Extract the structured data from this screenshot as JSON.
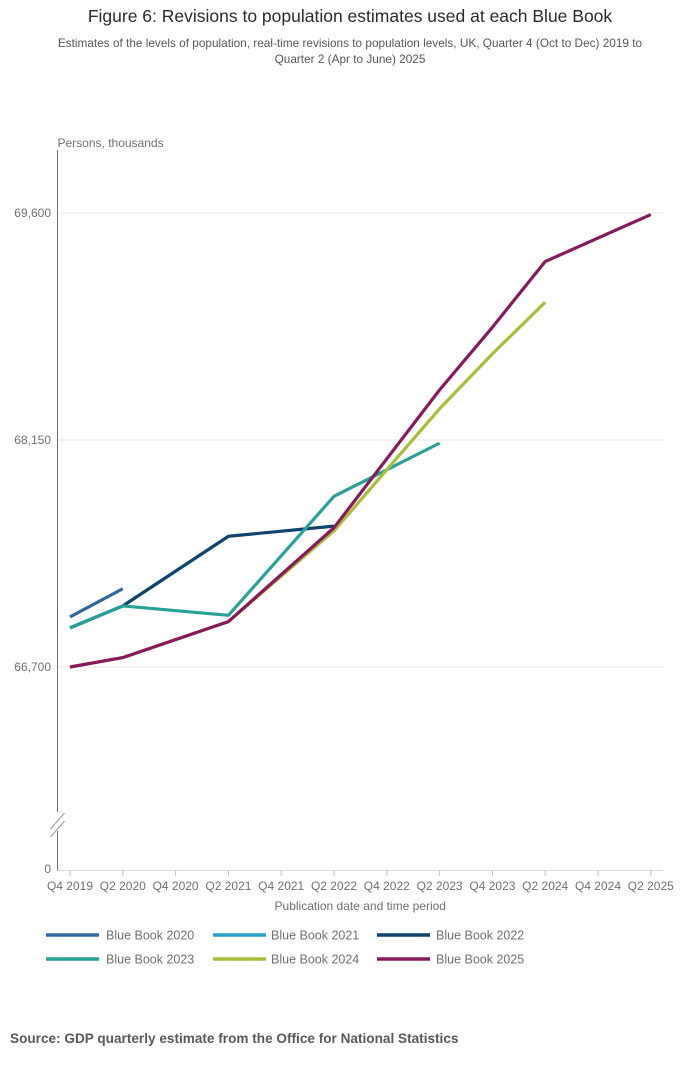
{
  "figure": {
    "title": "Figure 6: Revisions to population estimates used at each Blue Book",
    "subtitle": "Estimates of the levels of population, real-time revisions to population levels, UK, Quarter 4 (Oct to Dec) 2019 to Quarter 2 (Apr to June) 2025",
    "source": "Source: GDP quarterly estimate from the Office for National Statistics"
  },
  "chart_data": {
    "type": "line",
    "title": "Figure 6: Revisions to population estimates used at each Blue Book",
    "xlabel": "Publication date and time period",
    "ylabel": "Persons, thousands",
    "y_axis": {
      "unit_label": "Persons, thousands",
      "ticks": [
        66700,
        68150,
        69600
      ],
      "tick_labels": [
        "66,700",
        "68,150",
        "69,600"
      ],
      "zero_label": "0",
      "axis_break": true,
      "grid": true
    },
    "x_axis": {
      "title": "Publication date and time period",
      "tick_labels": [
        "Q4 2019",
        "Q2 2020",
        "Q4 2020",
        "Q2 2021",
        "Q4 2021",
        "Q2 2022",
        "Q4 2022",
        "Q2 2023",
        "Q4 2023",
        "Q2 2024",
        "Q4 2024",
        "Q2 2025"
      ]
    },
    "legend_position": "bottom",
    "legend_order": [
      "Blue Book 2020",
      "Blue Book 2021",
      "Blue Book 2022",
      "Blue Book 2023",
      "Blue Book 2024",
      "Blue Book 2025"
    ],
    "draw_order": [
      "Blue Book 2021",
      "Blue Book 2022",
      "Blue Book 2020",
      "Blue Book 2023",
      "Blue Book 2024",
      "Blue Book 2025"
    ],
    "series": [
      {
        "name": "Blue Book 2020",
        "color": "#33689f",
        "points": [
          [
            "Q4 2019",
            67020
          ],
          [
            "Q1 2020",
            67110
          ],
          [
            "Q2 2020",
            67200
          ]
        ]
      },
      {
        "name": "Blue Book 2021",
        "color": "#27a0cc",
        "points": [
          [
            "Q4 2019",
            66950
          ],
          [
            "Q2 2020",
            67090
          ],
          [
            "Q2 2021",
            67535
          ]
        ]
      },
      {
        "name": "Blue Book 2022",
        "color": "#12436d",
        "points": [
          [
            "Q4 2019",
            66950
          ],
          [
            "Q2 2020",
            67090
          ],
          [
            "Q2 2021",
            67535
          ],
          [
            "Q2 2022",
            67600
          ]
        ]
      },
      {
        "name": "Blue Book 2023",
        "color": "#28a197",
        "points": [
          [
            "Q4 2019",
            66950
          ],
          [
            "Q2 2020",
            67090
          ],
          [
            "Q2 2021",
            67030
          ],
          [
            "Q2 2022",
            67790
          ],
          [
            "Q2 2023",
            68130
          ]
        ]
      },
      {
        "name": "Blue Book 2024",
        "color": "#a8bd3a",
        "points": [
          [
            "Q4 2019",
            66700
          ],
          [
            "Q2 2020",
            66760
          ],
          [
            "Q2 2021",
            66990
          ],
          [
            "Q2 2022",
            67570
          ],
          [
            "Q2 2023",
            68350
          ],
          [
            "Q4 2023",
            68700
          ],
          [
            "Q2 2024",
            69030
          ]
        ]
      },
      {
        "name": "Blue Book 2025",
        "color": "#871a5b",
        "points": [
          [
            "Q4 2019",
            66700
          ],
          [
            "Q2 2020",
            66760
          ],
          [
            "Q2 2021",
            66990
          ],
          [
            "Q2 2022",
            67590
          ],
          [
            "Q2 2023",
            68470
          ],
          [
            "Q4 2023",
            68870
          ],
          [
            "Q2 2024",
            69290
          ],
          [
            "Q2 2025",
            69590
          ]
        ]
      }
    ]
  }
}
